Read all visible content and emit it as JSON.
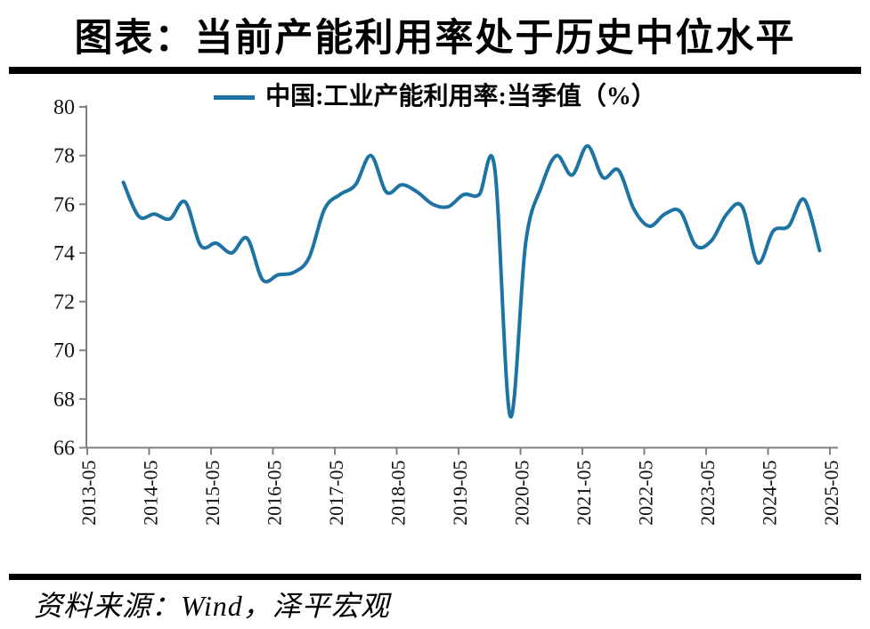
{
  "title": "图表：当前产能利用率处于历史中位水平",
  "legend": {
    "label": "中国:工业产能利用率:当季值（%）"
  },
  "source": "资料来源：Wind，泽平宏观",
  "colors": {
    "line": "#1E73A5",
    "axis": "#808080",
    "rule": "#000000",
    "text": "#000000"
  },
  "chart_data": {
    "type": "line",
    "title": "图表：当前产能利用率处于历史中位水平",
    "xlabel": "",
    "ylabel": "",
    "grid": false,
    "legend_position": "top",
    "ylim": [
      66,
      80
    ],
    "y_ticks": [
      66,
      68,
      70,
      72,
      74,
      76,
      78,
      80
    ],
    "x_tick_labels": [
      "2013-05",
      "2014-05",
      "2015-05",
      "2016-05",
      "2017-05",
      "2018-05",
      "2019-05",
      "2020-05",
      "2021-05",
      "2022-05",
      "2023-05",
      "2024-05",
      "2025-05"
    ],
    "series": [
      {
        "name": "中国:工业产能利用率:当季值（%）",
        "points": [
          [
            "2013-12",
            76.9
          ],
          [
            "2014-03",
            75.5
          ],
          [
            "2014-06",
            75.6
          ],
          [
            "2014-09",
            75.4
          ],
          [
            "2014-12",
            76.1
          ],
          [
            "2015-03",
            74.3
          ],
          [
            "2015-06",
            74.4
          ],
          [
            "2015-09",
            74.0
          ],
          [
            "2015-12",
            74.6
          ],
          [
            "2016-03",
            72.9
          ],
          [
            "2016-06",
            73.1
          ],
          [
            "2016-09",
            73.2
          ],
          [
            "2016-12",
            73.8
          ],
          [
            "2017-03",
            75.8
          ],
          [
            "2017-06",
            76.4
          ],
          [
            "2017-09",
            76.8
          ],
          [
            "2017-12",
            78.0
          ],
          [
            "2018-03",
            76.5
          ],
          [
            "2018-06",
            76.8
          ],
          [
            "2018-09",
            76.5
          ],
          [
            "2018-12",
            76.0
          ],
          [
            "2019-03",
            75.9
          ],
          [
            "2019-06",
            76.4
          ],
          [
            "2019-09",
            76.4
          ],
          [
            "2019-12",
            77.5
          ],
          [
            "2020-03",
            67.3
          ],
          [
            "2020-06",
            74.4
          ],
          [
            "2020-09",
            76.7
          ],
          [
            "2020-12",
            78.0
          ],
          [
            "2021-03",
            77.2
          ],
          [
            "2021-06",
            78.4
          ],
          [
            "2021-09",
            77.1
          ],
          [
            "2021-12",
            77.4
          ],
          [
            "2022-03",
            75.8
          ],
          [
            "2022-06",
            75.1
          ],
          [
            "2022-09",
            75.6
          ],
          [
            "2022-12",
            75.7
          ],
          [
            "2023-03",
            74.3
          ],
          [
            "2023-06",
            74.5
          ],
          [
            "2023-09",
            75.6
          ],
          [
            "2023-12",
            75.9
          ],
          [
            "2024-03",
            73.6
          ],
          [
            "2024-06",
            74.9
          ],
          [
            "2024-09",
            75.1
          ],
          [
            "2024-12",
            76.2
          ],
          [
            "2025-03",
            74.1
          ]
        ]
      }
    ]
  }
}
